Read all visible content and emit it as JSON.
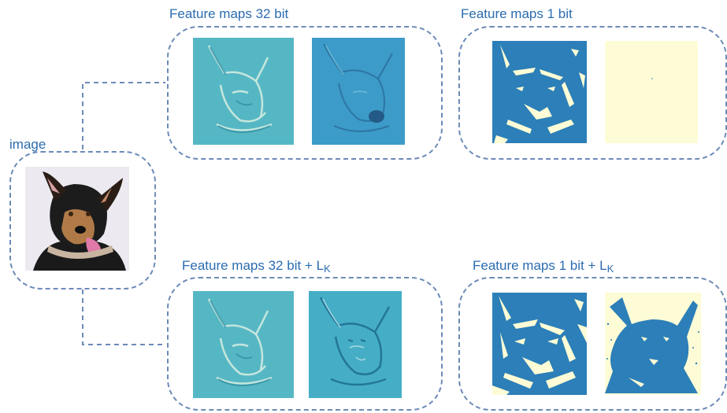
{
  "labels": {
    "image": "image",
    "fm32": "Feature maps 32 bit",
    "fm1": "Feature maps 1 bit",
    "fm32k_prefix": "Feature maps 32 bit + L",
    "fm1k_prefix": "Feature maps 1 bit + L",
    "subscript": "K"
  },
  "colors": {
    "label_blue": "#2b6cb0",
    "dashed_border": "#6c8ab8",
    "teal_32bit": "#56b7c4",
    "teal_32bit_alt": "#3c9bc8",
    "binary_blue": "#2c7fb8",
    "binary_cream": "#fdfcd6"
  }
}
